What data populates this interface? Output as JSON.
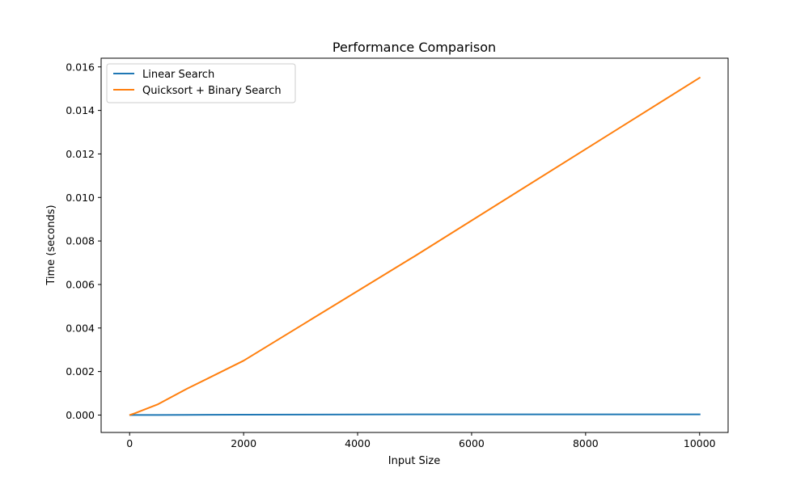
{
  "chart_data": {
    "type": "line",
    "title": "Performance Comparison",
    "xlabel": "Input Size",
    "ylabel": "Time (seconds)",
    "xlim": [
      -500,
      10500
    ],
    "ylim": [
      -0.0008,
      0.0164
    ],
    "xticks": [
      0,
      2000,
      4000,
      6000,
      8000,
      10000
    ],
    "xtick_labels": [
      "0",
      "2000",
      "4000",
      "6000",
      "8000",
      "10000"
    ],
    "yticks": [
      0.0,
      0.002,
      0.004,
      0.006,
      0.008,
      0.01,
      0.012,
      0.014,
      0.016
    ],
    "ytick_labels": [
      "0.000",
      "0.002",
      "0.004",
      "0.006",
      "0.008",
      "0.010",
      "0.012",
      "0.014",
      "0.016"
    ],
    "grid": false,
    "legend_position": "upper-left",
    "series": [
      {
        "name": "Linear Search",
        "color": "#1f77b4",
        "x": [
          10,
          100,
          500,
          1000,
          2000,
          5000,
          10000
        ],
        "y": [
          1e-06,
          2e-06,
          5e-06,
          9e-06,
          1.5e-05,
          3e-05,
          3e-05
        ]
      },
      {
        "name": "Quicksort + Binary Search",
        "color": "#ff7f0e",
        "x": [
          10,
          100,
          500,
          1000,
          2000,
          5000,
          10000
        ],
        "y": [
          1e-05,
          9e-05,
          0.0005,
          0.0012,
          0.0025,
          0.0073,
          0.0155
        ]
      }
    ]
  }
}
